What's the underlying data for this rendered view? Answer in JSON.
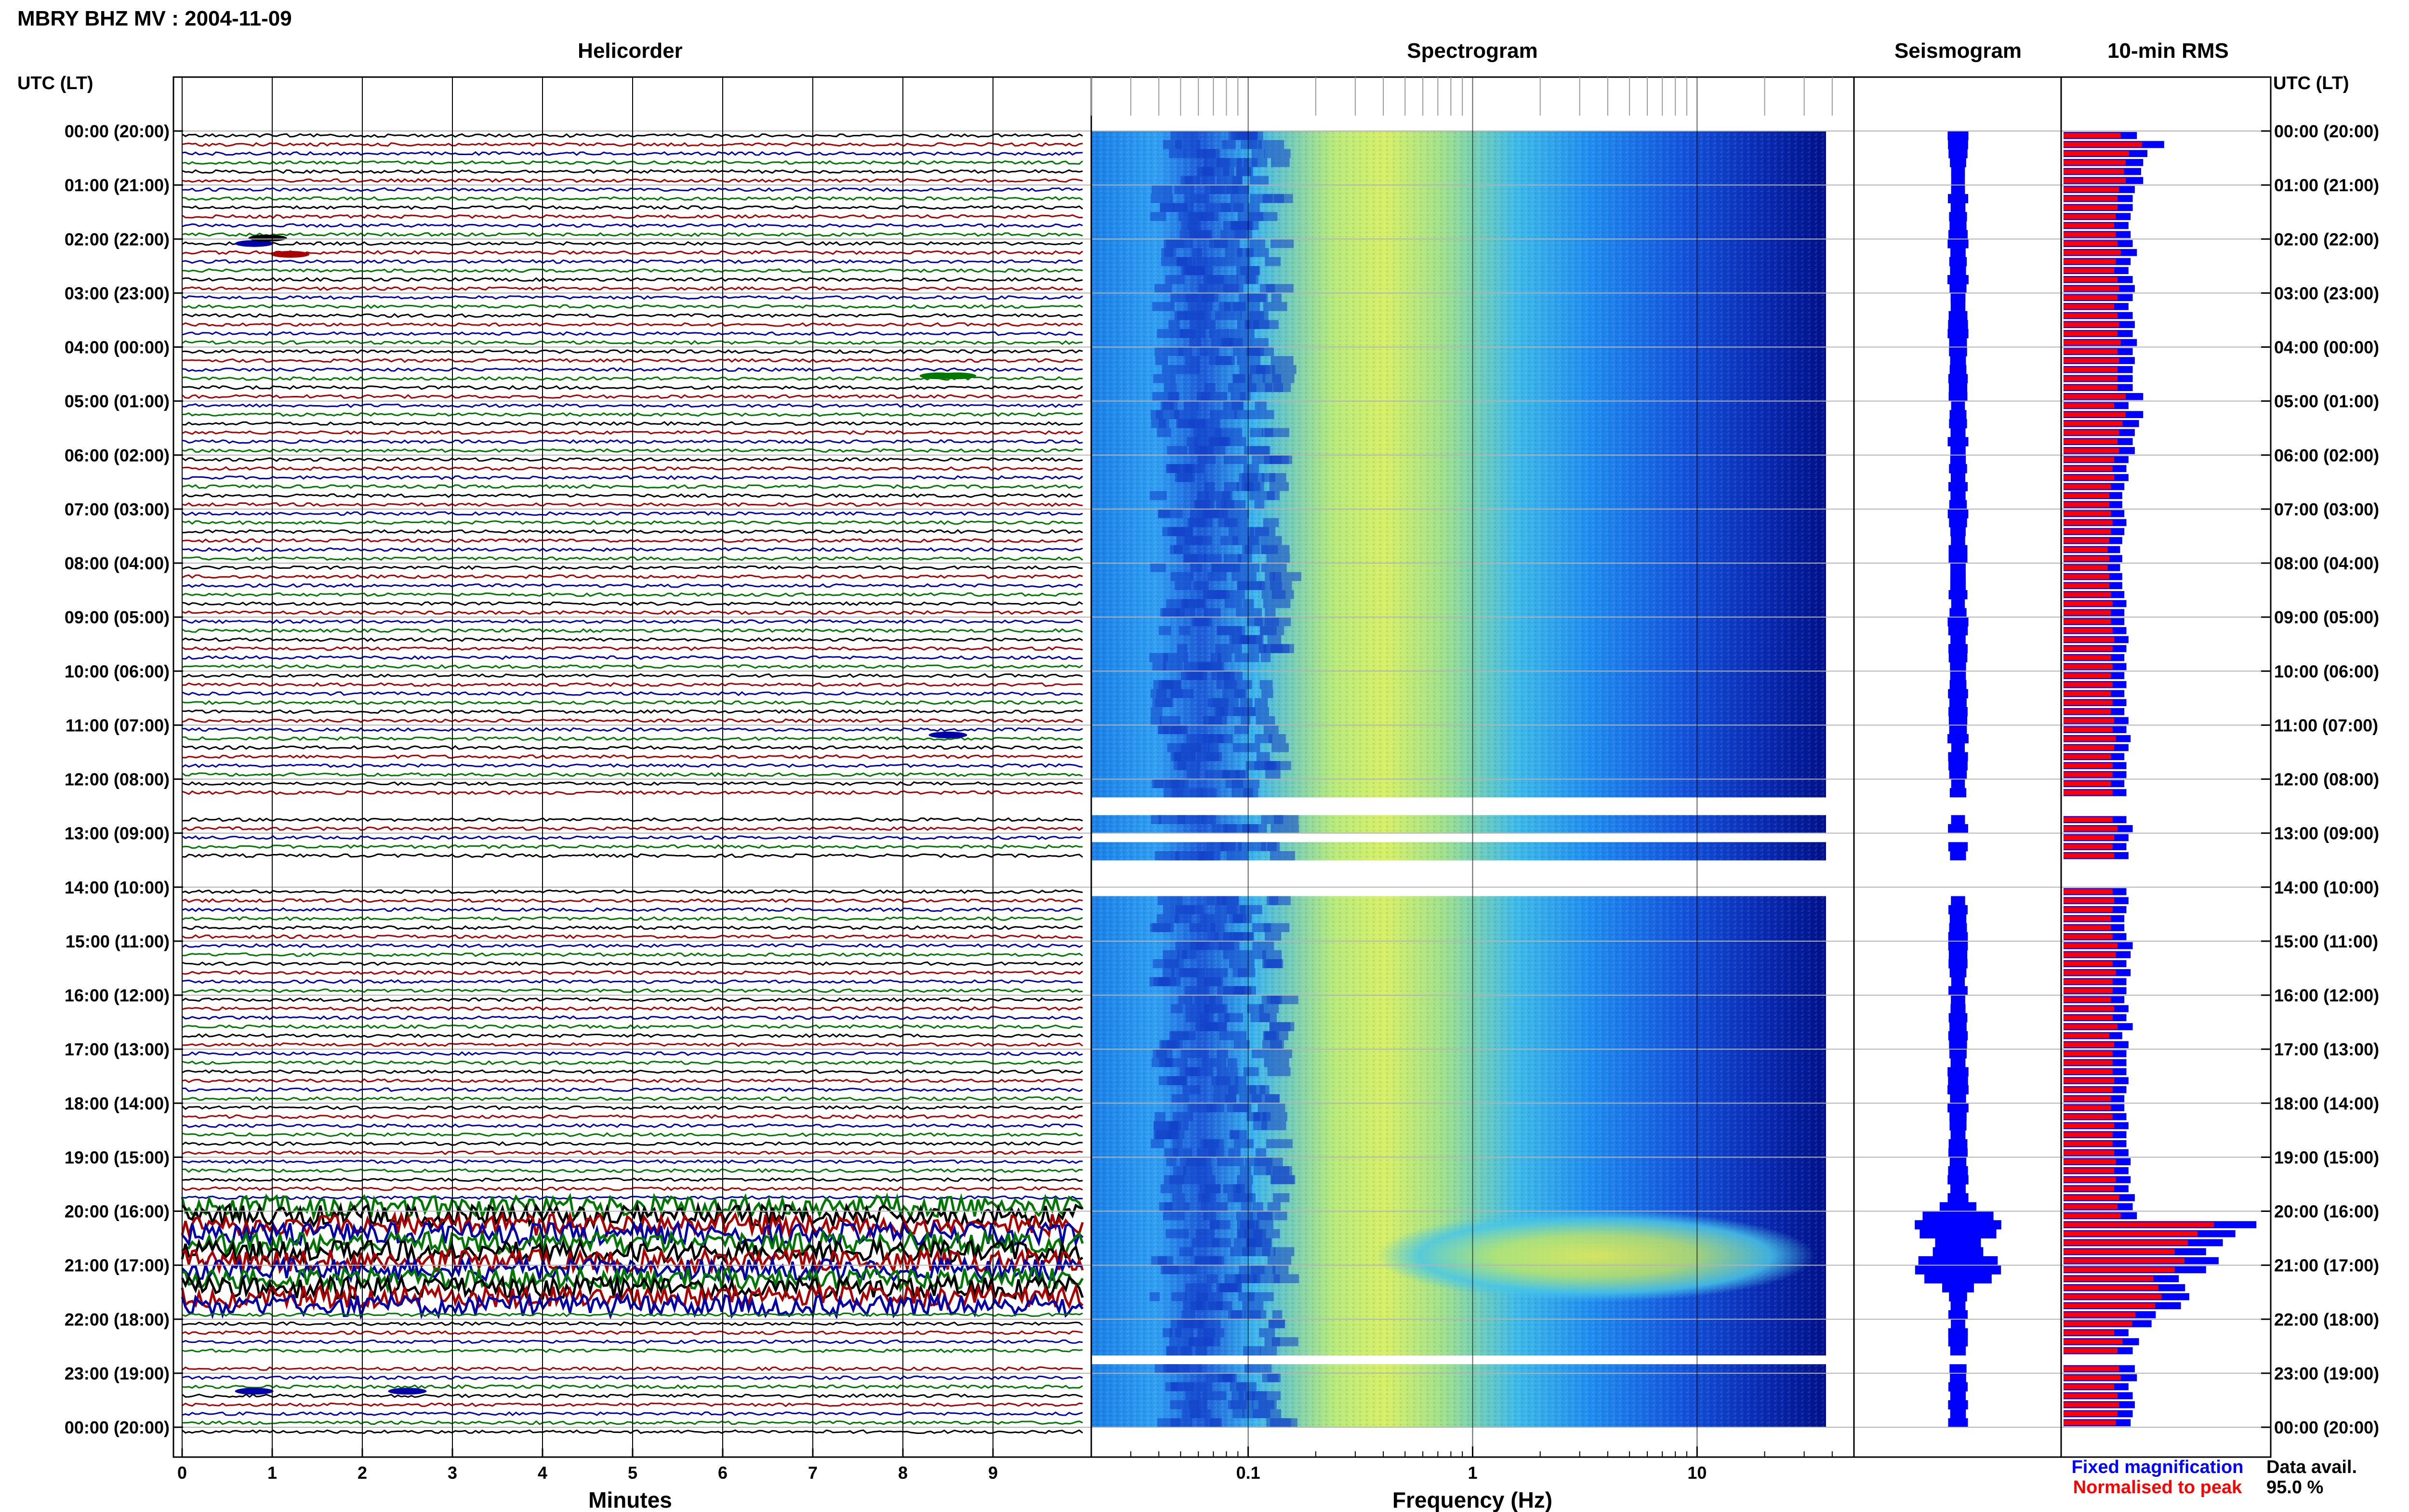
{
  "title": "MBRY BHZ MV : 2004-11-09",
  "panels": {
    "helicorder": "Helicorder",
    "spectrogram": "Spectrogram",
    "seismogram": "Seismogram",
    "rms": "10-min RMS"
  },
  "axis_header_left": "UTC (LT)",
  "axis_header_right": "UTC (LT)",
  "time_labels": [
    "00:00 (20:00)",
    "01:00 (21:00)",
    "02:00 (22:00)",
    "03:00 (23:00)",
    "04:00 (00:00)",
    "05:00 (01:00)",
    "06:00 (02:00)",
    "07:00 (03:00)",
    "08:00 (04:00)",
    "09:00 (05:00)",
    "10:00 (06:00)",
    "11:00 (07:00)",
    "12:00 (08:00)",
    "13:00 (09:00)",
    "14:00 (10:00)",
    "15:00 (11:00)",
    "16:00 (12:00)",
    "17:00 (13:00)",
    "18:00 (14:00)",
    "19:00 (15:00)",
    "20:00 (16:00)",
    "21:00 (17:00)",
    "22:00 (18:00)",
    "23:00 (19:00)",
    "00:00 (20:00)"
  ],
  "helicorder_xlabel": "Minutes",
  "helicorder_ticks": [
    "0",
    "1",
    "2",
    "3",
    "4",
    "5",
    "6",
    "7",
    "8",
    "9"
  ],
  "freq_xlabel": "Frequency (Hz)",
  "freq_ticks": [
    "0.1",
    "1",
    "10"
  ],
  "legend": {
    "fixed": "Fixed magnification",
    "normalised": "Normalised to peak",
    "fixed_color": "#0000ff",
    "normalised_color": "#ff0000"
  },
  "data_avail_label": "Data avail.",
  "data_avail_value": "95.0 %",
  "colors": {
    "trace_black": "#000000",
    "trace_red": "#aa0000",
    "trace_blue": "#0000aa",
    "trace_green": "#007700",
    "grid": "#b4b4b4",
    "spec_low": "#00008f",
    "spec_high": "#ffff00"
  },
  "chart_data": {
    "type": "heatmap",
    "helicorder_xlim": [
      0,
      10
    ],
    "freq_xlim": [
      0.02,
      50
    ],
    "freq_scale": "log",
    "time_range_hours": [
      0,
      24
    ],
    "gaps_hours": [
      [
        12.3,
        12.65
      ],
      [
        13.5,
        13.9
      ],
      [
        22.6,
        22.7
      ]
    ],
    "partial_gaps_hours": [
      [
        13.0,
        13.05
      ],
      [
        13.2,
        13.25
      ],
      [
        14.0,
        14.05
      ],
      [
        14.7,
        14.75
      ],
      [
        15.7,
        15.75
      ],
      [
        17.55,
        17.6
      ]
    ],
    "event_hours": [
      19.8,
      21.5
    ],
    "rms_fixed": [
      0.35,
      0.48,
      0.4,
      0.38,
      0.37,
      0.38,
      0.34,
      0.33,
      0.33,
      0.32,
      0.31,
      0.32,
      0.33,
      0.35,
      0.32,
      0.31,
      0.33,
      0.34,
      0.33,
      0.31,
      0.33,
      0.34,
      0.33,
      0.35,
      0.33,
      0.34,
      0.33,
      0.33,
      0.33,
      0.38,
      0.31,
      0.38,
      0.36,
      0.34,
      0.33,
      0.34,
      0.31,
      0.3,
      0.31,
      0.29,
      0.28,
      0.28,
      0.29,
      0.3,
      0.29,
      0.28,
      0.27,
      0.28,
      0.27,
      0.28,
      0.28,
      0.29,
      0.3,
      0.29,
      0.29,
      0.3,
      0.31,
      0.3,
      0.29,
      0.3,
      0.29,
      0.3,
      0.29,
      0.3,
      0.29,
      0.31,
      0.3,
      0.32,
      0.31,
      0.29,
      0.3,
      0.3,
      0.29,
      0.3,
      0.31,
      0.3,
      0.3,
      0.33,
      0.31,
      0.3,
      0.31,
      0.3,
      0.29,
      0.31,
      0.3,
      0.31,
      0.3,
      0.29,
      0.29,
      0.3,
      0.33,
      0.32,
      0.3,
      0.32,
      0.3,
      0.3,
      0.29,
      0.31,
      0.3,
      0.33,
      0.28,
      0.31,
      0.3,
      0.3,
      0.3,
      0.31,
      0.3,
      0.29,
      0.29,
      0.3,
      0.31,
      0.3,
      0.3,
      0.31,
      0.32,
      0.31,
      0.32,
      0.31,
      0.34,
      0.33,
      0.35,
      0.92,
      0.82,
      0.76,
      0.68,
      0.74,
      0.68,
      0.55,
      0.58,
      0.6,
      0.56,
      0.44,
      0.42,
      0.31,
      0.36,
      0.33,
      0.32,
      0.34,
      0.35,
      0.31,
      0.33,
      0.34,
      0.33,
      0.32
    ],
    "rms_normalised_ratio": 0.78
  }
}
